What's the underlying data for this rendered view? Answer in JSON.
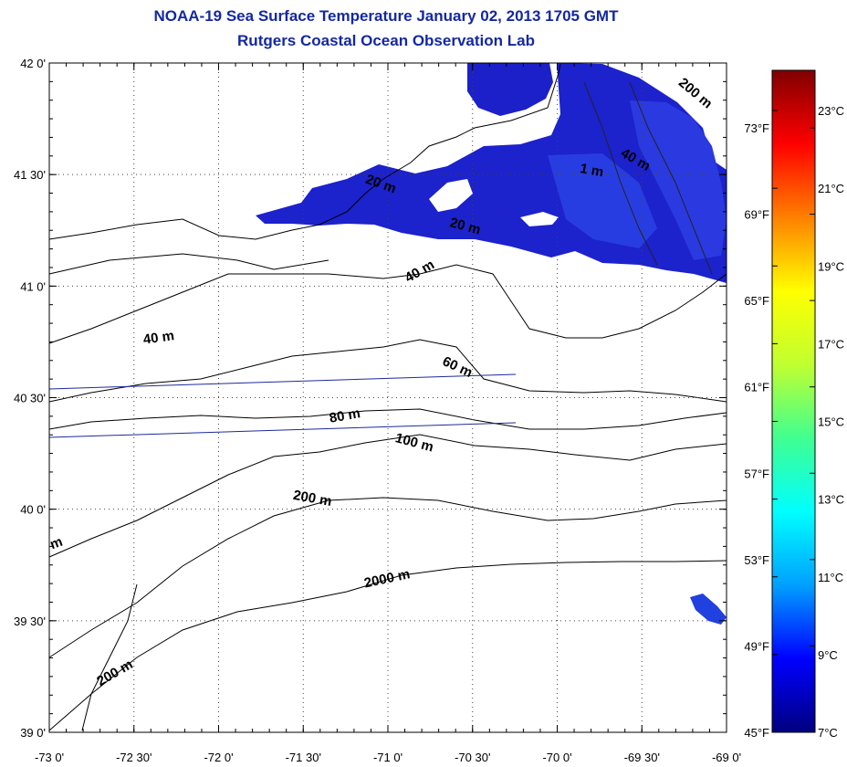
{
  "title": "NOAA-19 Sea Surface Temperature January 02, 2013 1705 GMT",
  "subtitle": "Rutgers Coastal Ocean Observation Lab",
  "lon_ticks": [
    "-73 0'",
    "-72 30'",
    "-72 0'",
    "-71 30'",
    "-71 0'",
    "-70 30'",
    "-70 0'",
    "-69 30'",
    "-69 0'"
  ],
  "lat_ticks": [
    "42 0'",
    "41 30'",
    "41 0'",
    "40 30'",
    "40 0'",
    "39 30'",
    "39 0'"
  ],
  "extent": {
    "lon_min": -73,
    "lon_max": -69,
    "lat_min": 39,
    "lat_max": 42
  },
  "colorbar": {
    "celsius": [
      "23°C",
      "21°C",
      "19°C",
      "17°C",
      "15°C",
      "13°C",
      "11°C",
      "9°C",
      "7°C"
    ],
    "fahrenheit": [
      "73°F",
      "69°F",
      "65°F",
      "61°F",
      "57°F",
      "53°F",
      "49°F",
      "45°F"
    ],
    "colors": [
      "#000080",
      "#0000ff",
      "#00a0ff",
      "#00ffff",
      "#40ff90",
      "#c0ff30",
      "#ffff00",
      "#ff8000",
      "#ff0000",
      "#800000"
    ]
  },
  "contour_labels": [
    {
      "text": "200 m",
      "lon": -69.2,
      "lat": 41.85,
      "rot": 40
    },
    {
      "text": "40 m",
      "lon": -69.55,
      "lat": 41.55,
      "rot": 30
    },
    {
      "text": "20 m",
      "lon": -70.55,
      "lat": 41.25,
      "rot": 15
    },
    {
      "text": "40 m",
      "lon": -70.8,
      "lat": 41.05,
      "rot": -30
    },
    {
      "text": "40 m",
      "lon": -72.35,
      "lat": 40.75,
      "rot": -8
    },
    {
      "text": "60 m",
      "lon": -70.6,
      "lat": 40.62,
      "rot": 25
    },
    {
      "text": "80 m",
      "lon": -71.25,
      "lat": 40.4,
      "rot": -10
    },
    {
      "text": "100 m",
      "lon": -70.85,
      "lat": 40.28,
      "rot": 15
    },
    {
      "text": "200 m",
      "lon": -71.45,
      "lat": 40.03,
      "rot": 10
    },
    {
      "text": "2000 m",
      "lon": -71.0,
      "lat": 39.67,
      "rot": -12
    },
    {
      "text": "200 m",
      "lon": -72.6,
      "lat": 39.25,
      "rot": -30
    },
    {
      "text": "m",
      "lon": -72.95,
      "lat": 39.83,
      "rot": -20
    },
    {
      "text": "20 m",
      "lon": -71.05,
      "lat": 41.44,
      "rot": 20
    },
    {
      "text": "1 m",
      "lon": -69.8,
      "lat": 41.5,
      "rot": 10
    }
  ]
}
